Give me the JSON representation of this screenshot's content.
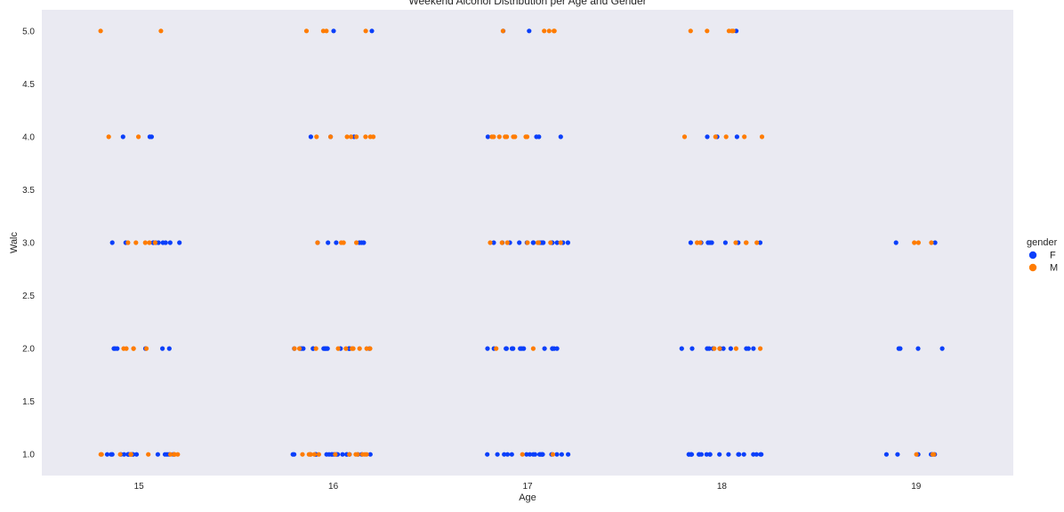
{
  "chart_data": {
    "type": "scatter",
    "title": "Weekend Alcohol Distribution per Age and Gender",
    "xlabel": "Age",
    "ylabel": "Walc",
    "categories": [
      "15",
      "16",
      "17",
      "18",
      "19"
    ],
    "y_ticks": [
      "1.0",
      "1.5",
      "2.0",
      "2.5",
      "3.0",
      "3.5",
      "4.0",
      "4.5",
      "5.0"
    ],
    "ylim": [
      0.8,
      5.2
    ],
    "grid": false,
    "legend": {
      "title": "gender",
      "placement": "right"
    },
    "series": [
      {
        "name": "F",
        "color": "#0a3ffa",
        "points": [
          {
            "x": 15,
            "y": 5,
            "n": 0
          },
          {
            "x": 15,
            "y": 4,
            "n": 3
          },
          {
            "x": 15,
            "y": 3,
            "n": 10
          },
          {
            "x": 15,
            "y": 2,
            "n": 6
          },
          {
            "x": 15,
            "y": 1,
            "n": 16
          },
          {
            "x": 16,
            "y": 5,
            "n": 2
          },
          {
            "x": 16,
            "y": 4,
            "n": 3
          },
          {
            "x": 16,
            "y": 3,
            "n": 6
          },
          {
            "x": 16,
            "y": 2,
            "n": 16
          },
          {
            "x": 16,
            "y": 1,
            "n": 20
          },
          {
            "x": 17,
            "y": 5,
            "n": 2
          },
          {
            "x": 17,
            "y": 4,
            "n": 4
          },
          {
            "x": 17,
            "y": 3,
            "n": 16
          },
          {
            "x": 17,
            "y": 2,
            "n": 14
          },
          {
            "x": 17,
            "y": 1,
            "n": 18
          },
          {
            "x": 18,
            "y": 5,
            "n": 1
          },
          {
            "x": 18,
            "y": 4,
            "n": 3
          },
          {
            "x": 18,
            "y": 3,
            "n": 8
          },
          {
            "x": 18,
            "y": 2,
            "n": 12
          },
          {
            "x": 18,
            "y": 1,
            "n": 20
          },
          {
            "x": 19,
            "y": 3,
            "n": 2
          },
          {
            "x": 19,
            "y": 2,
            "n": 4
          },
          {
            "x": 19,
            "y": 1,
            "n": 6
          }
        ]
      },
      {
        "name": "M",
        "color": "#ff7c00",
        "points": [
          {
            "x": 15,
            "y": 5,
            "n": 2
          },
          {
            "x": 15,
            "y": 4,
            "n": 2
          },
          {
            "x": 15,
            "y": 3,
            "n": 5
          },
          {
            "x": 15,
            "y": 2,
            "n": 5
          },
          {
            "x": 15,
            "y": 1,
            "n": 12
          },
          {
            "x": 16,
            "y": 5,
            "n": 4
          },
          {
            "x": 16,
            "y": 4,
            "n": 8
          },
          {
            "x": 16,
            "y": 3,
            "n": 4
          },
          {
            "x": 16,
            "y": 2,
            "n": 10
          },
          {
            "x": 16,
            "y": 1,
            "n": 12
          },
          {
            "x": 17,
            "y": 5,
            "n": 5
          },
          {
            "x": 17,
            "y": 4,
            "n": 9
          },
          {
            "x": 17,
            "y": 3,
            "n": 8
          },
          {
            "x": 17,
            "y": 2,
            "n": 2
          },
          {
            "x": 17,
            "y": 1,
            "n": 2
          },
          {
            "x": 18,
            "y": 5,
            "n": 5
          },
          {
            "x": 18,
            "y": 4,
            "n": 5
          },
          {
            "x": 18,
            "y": 3,
            "n": 6
          },
          {
            "x": 18,
            "y": 2,
            "n": 4
          },
          {
            "x": 18,
            "y": 1,
            "n": 0
          },
          {
            "x": 19,
            "y": 3,
            "n": 3
          },
          {
            "x": 19,
            "y": 2,
            "n": 0
          },
          {
            "x": 19,
            "y": 1,
            "n": 3
          }
        ]
      }
    ]
  }
}
